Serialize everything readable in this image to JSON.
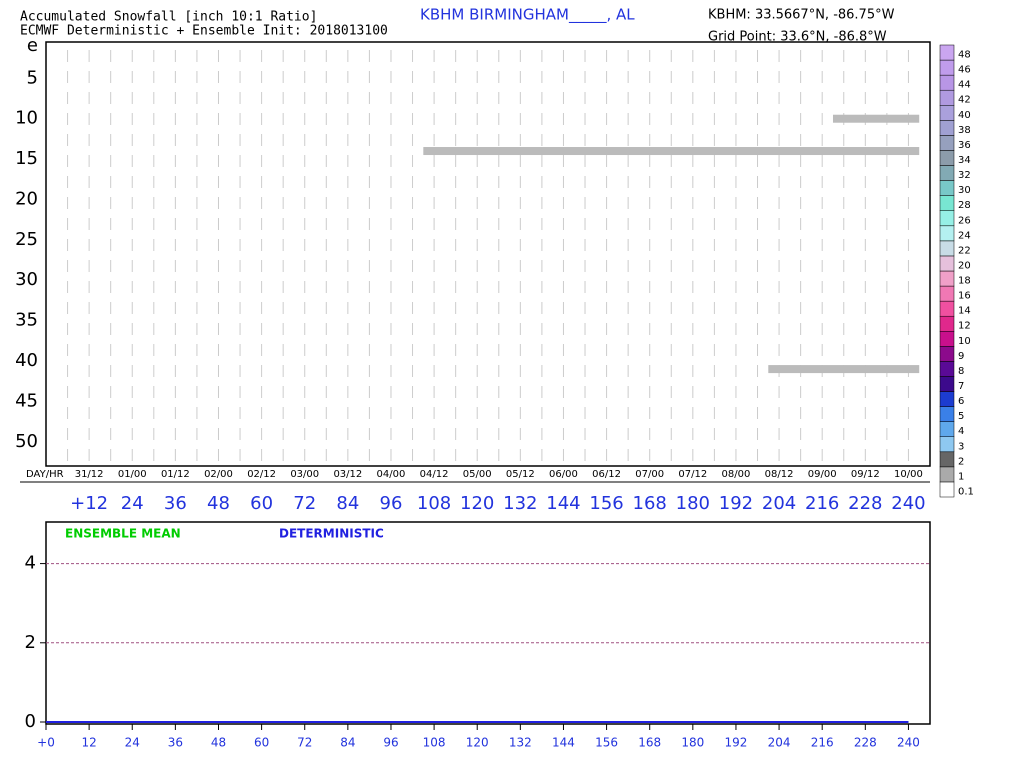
{
  "header": {
    "title_line1": "Accumulated Snowfall [inch 10:1 Ratio]",
    "title_line2": "ECMWF Deterministic + Ensemble Init: 2018013100",
    "station": "KBHM BIRMINGHAM_____, AL",
    "station_coords": "KBHM: 33.5667°N, -86.75°W",
    "grid_point": "Grid Point: 33.6°N, -86.8°W"
  },
  "chart_data": [
    {
      "type": "member-bars",
      "xlim": [
        0,
        246
      ],
      "ylim": [
        0.5,
        53
      ],
      "yticks": [
        {
          "value": 1,
          "label": "e"
        },
        5,
        10,
        15,
        20,
        25,
        30,
        35,
        40,
        45,
        50
      ],
      "xticks": [
        {
          "value": 12,
          "label": "+12"
        },
        24,
        36,
        48,
        60,
        72,
        84,
        96,
        108,
        120,
        132,
        144,
        156,
        168,
        180,
        192,
        204,
        216,
        228,
        240
      ],
      "x_minor_ticks": [
        6,
        12,
        18,
        24,
        30,
        36,
        42,
        48,
        54,
        60,
        66,
        72,
        78,
        84,
        90,
        96,
        102,
        108,
        114,
        120,
        126,
        132,
        138,
        144,
        150,
        156,
        162,
        168,
        174,
        180,
        186,
        192,
        198,
        204,
        210,
        216,
        222,
        228,
        234,
        240
      ],
      "day_hr_label": "DAY/HR",
      "day_labels": [
        "31/12",
        "01/00",
        "01/12",
        "02/00",
        "02/12",
        "03/00",
        "03/12",
        "04/00",
        "04/12",
        "05/00",
        "05/12",
        "06/00",
        "06/12",
        "07/00",
        "07/12",
        "08/00",
        "08/12",
        "09/00",
        "09/12",
        "10/00"
      ],
      "segments": [
        {
          "member": 10,
          "start": 219,
          "end": 243,
          "color": "#bbbbbb"
        },
        {
          "member": 14,
          "start": 105,
          "end": 243,
          "color": "#bbbbbb"
        },
        {
          "member": 41,
          "start": 201,
          "end": 243,
          "color": "#bbbbbb"
        }
      ],
      "colorbar": {
        "levels": [
          0.1,
          1,
          2,
          3,
          4,
          5,
          6,
          7,
          8,
          9,
          10,
          12,
          14,
          16,
          18,
          20,
          22,
          24,
          26,
          28,
          30,
          32,
          34,
          36,
          38,
          40,
          42,
          44,
          46,
          48
        ],
        "colors": [
          "#ffffff",
          "#aaaaaa",
          "#666666",
          "#8ec8f0",
          "#5fa8ec",
          "#3a80e8",
          "#1c3cd0",
          "#3c0a8c",
          "#5a0a96",
          "#8c0a8c",
          "#c8108c",
          "#e0288c",
          "#f050a0",
          "#f078b4",
          "#f0a0c8",
          "#e6c0dc",
          "#c8dce6",
          "#b4f0f0",
          "#96f0e6",
          "#78e6d2",
          "#78c8c8",
          "#82aab4",
          "#8c9caa",
          "#96a0be",
          "#a0a0d2",
          "#aaa0dc",
          "#b09ae0",
          "#b896e6",
          "#c09cec",
          "#caa6f0"
        ]
      }
    },
    {
      "type": "line",
      "xlim": [
        0,
        246
      ],
      "ylim": [
        0,
        5.05
      ],
      "yticks": [
        0,
        2,
        4
      ],
      "xticks": [
        {
          "value": 0,
          "label": "+0"
        },
        12,
        24,
        36,
        48,
        60,
        72,
        84,
        96,
        108,
        120,
        132,
        144,
        156,
        168,
        180,
        192,
        204,
        216,
        228,
        240
      ],
      "x": [
        0,
        12,
        24,
        36,
        48,
        60,
        72,
        84,
        96,
        108,
        120,
        132,
        144,
        156,
        168,
        180,
        192,
        204,
        216,
        228,
        240
      ],
      "series": [
        {
          "name": "ENSEMBLE MEAN",
          "color": "#00cc00",
          "values": [
            0,
            0,
            0,
            0,
            0,
            0,
            0,
            0,
            0,
            0,
            0,
            0,
            0,
            0,
            0,
            0,
            0,
            0,
            0,
            0,
            0
          ]
        },
        {
          "name": "DETERMINISTIC",
          "color": "#2020e0",
          "values": [
            0,
            0,
            0,
            0,
            0,
            0,
            0,
            0,
            0,
            0,
            0,
            0,
            0,
            0,
            0,
            0,
            0,
            0,
            0,
            0,
            0
          ]
        }
      ]
    }
  ]
}
